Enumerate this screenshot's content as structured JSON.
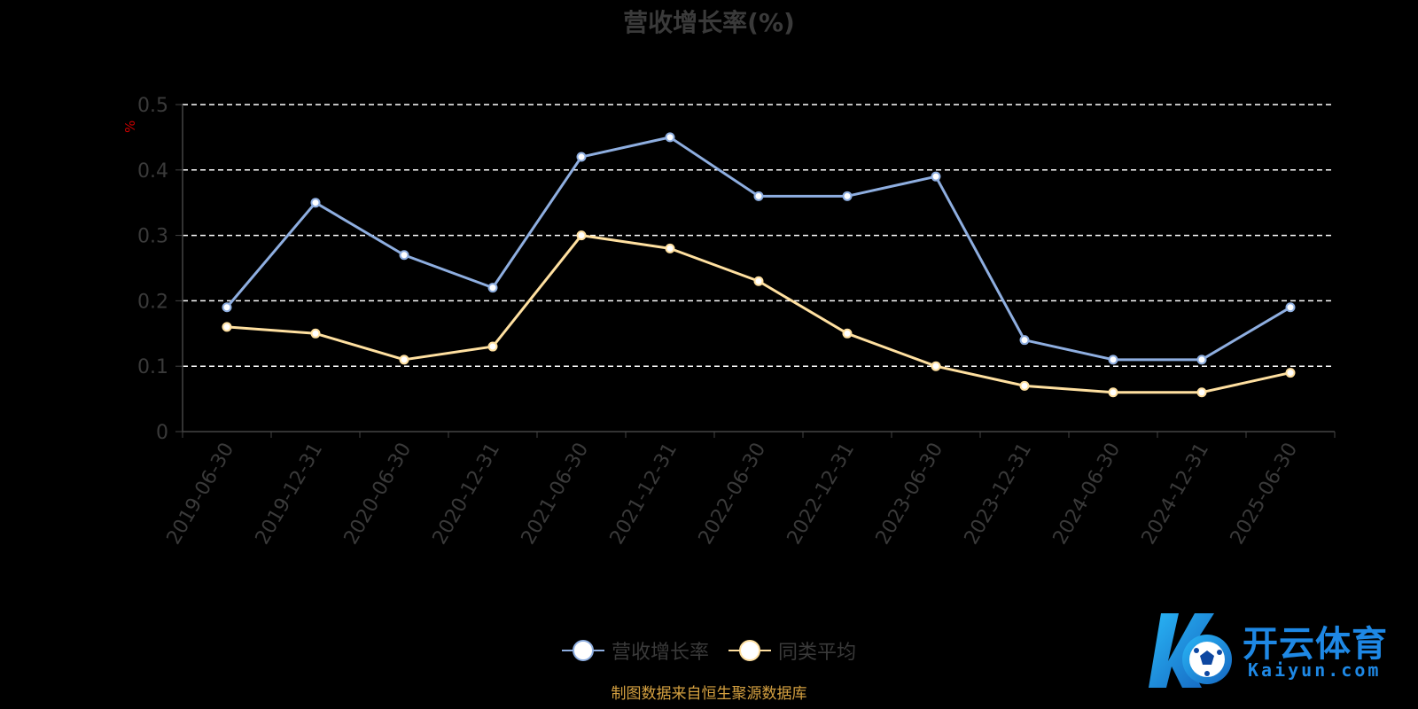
{
  "chart_data": {
    "type": "line",
    "title": "营收增长率(%)",
    "ylabel": "%",
    "xlabel": "",
    "categories": [
      "2019-06-30",
      "2019-12-31",
      "2020-06-30",
      "2020-12-31",
      "2021-06-30",
      "2021-12-31",
      "2022-06-30",
      "2022-12-31",
      "2023-06-30",
      "2023-12-31",
      "2024-06-30",
      "2024-12-31",
      "2025-06-30"
    ],
    "series": [
      {
        "name": "营收增长率",
        "color": "#8eaee0",
        "values": [
          0.19,
          0.35,
          0.27,
          0.22,
          0.42,
          0.45,
          0.36,
          0.36,
          0.39,
          0.14,
          0.11,
          0.11,
          0.19
        ]
      },
      {
        "name": "同类平均",
        "color": "#ffe0a0",
        "values": [
          0.16,
          0.15,
          0.11,
          0.13,
          0.3,
          0.28,
          0.23,
          0.15,
          0.1,
          0.07,
          0.06,
          0.06,
          0.09
        ]
      }
    ],
    "ylim": [
      0,
      0.5
    ],
    "yticks": [
      0,
      0.1,
      0.2,
      0.3,
      0.4,
      0.5
    ],
    "grid": true,
    "legend": "bottom-center"
  },
  "source_note": "制图数据来自恒生聚源数据库",
  "watermark": {
    "name": "开云体育",
    "domain": "Kaiyun.com"
  }
}
